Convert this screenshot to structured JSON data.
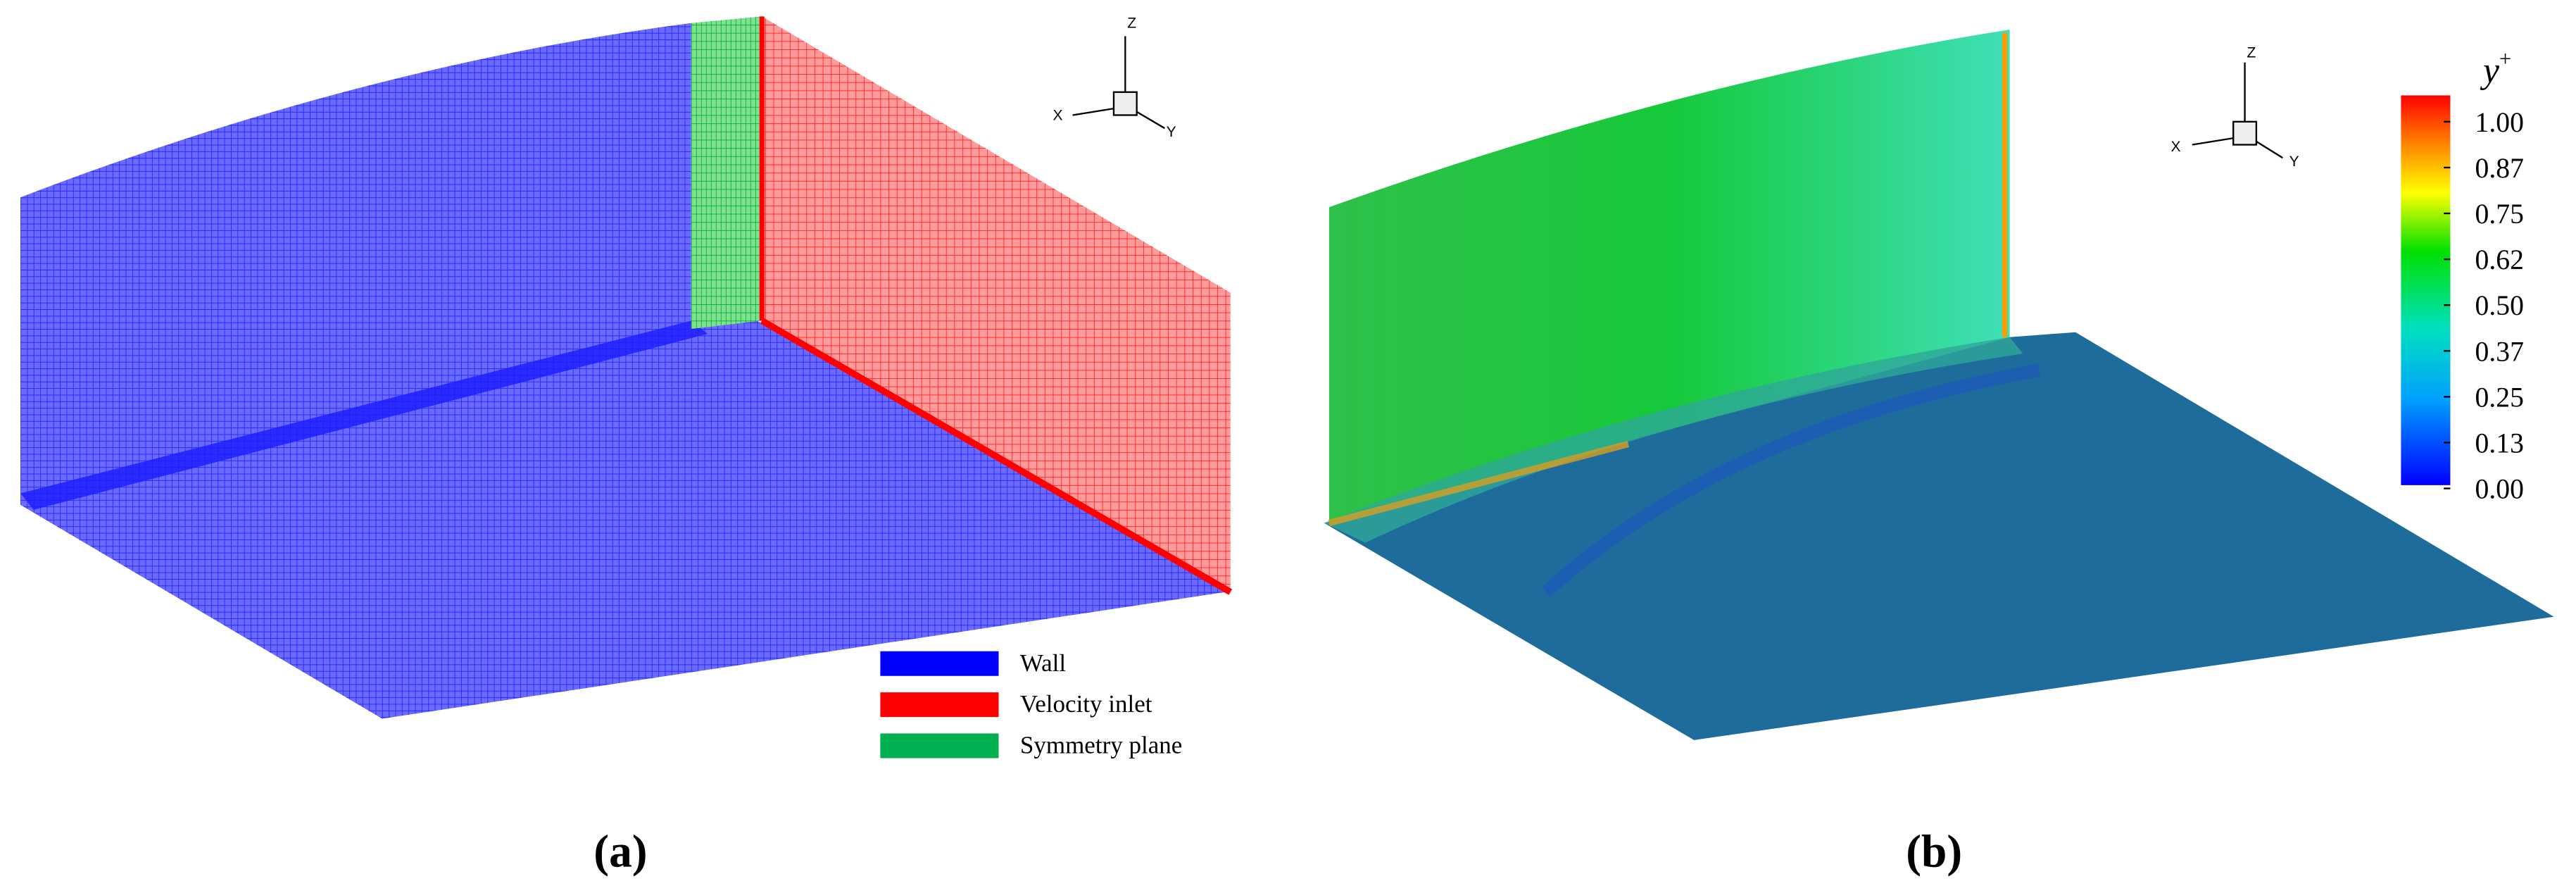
{
  "panel_a": {
    "label": "(a)",
    "triad": {
      "x": "X",
      "y": "Y",
      "z": "Z"
    },
    "legend": [
      {
        "name": "Wall",
        "color": "#0000ff"
      },
      {
        "name": "Velocity inlet",
        "color": "#ff0000"
      },
      {
        "name": "Symmetry plane",
        "color": "#00b050"
      }
    ]
  },
  "panel_b": {
    "label": "(b)",
    "triad": {
      "x": "X",
      "y": "Y",
      "z": "Z"
    },
    "colorbar": {
      "title": "y",
      "title_superscript": "+",
      "ticks": [
        "1.00",
        "0.87",
        "0.75",
        "0.62",
        "0.50",
        "0.37",
        "0.25",
        "0.13",
        "0.00"
      ]
    }
  }
}
